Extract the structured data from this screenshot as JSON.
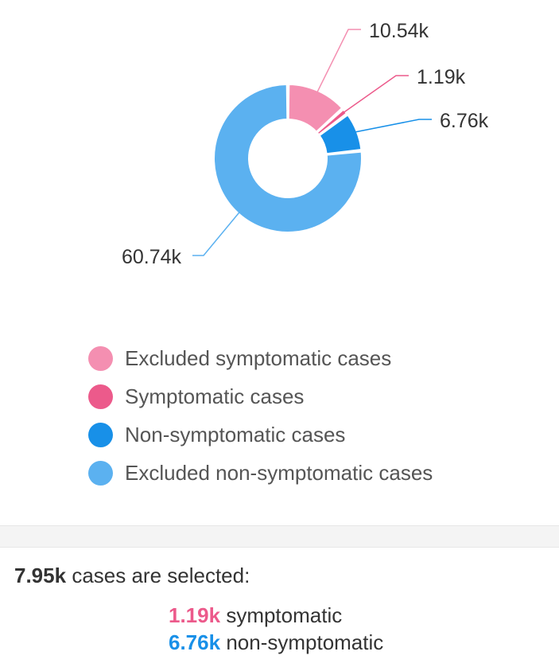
{
  "chart_data": {
    "type": "pie",
    "categories": [
      "Excluded symptomatic cases",
      "Symptomatic cases",
      "Non-symptomatic cases",
      "Excluded non-symptomatic cases"
    ],
    "values": [
      10540,
      1190,
      6760,
      60740
    ],
    "value_labels": [
      "10.54k",
      "1.19k",
      "6.76k",
      "60.74k"
    ],
    "colors": [
      "#f48fb1",
      "#ec5a8b",
      "#1890e8",
      "#5bb1f0"
    ],
    "donut": true,
    "legend_position": "bottom"
  },
  "summary": {
    "total": "7.95k",
    "text": "cases are selected:",
    "lines": [
      {
        "value": "1.19k",
        "label": "symptomatic",
        "color": "#ec5a8b"
      },
      {
        "value": "6.76k",
        "label": "non-symptomatic",
        "color": "#1890e8"
      }
    ]
  }
}
